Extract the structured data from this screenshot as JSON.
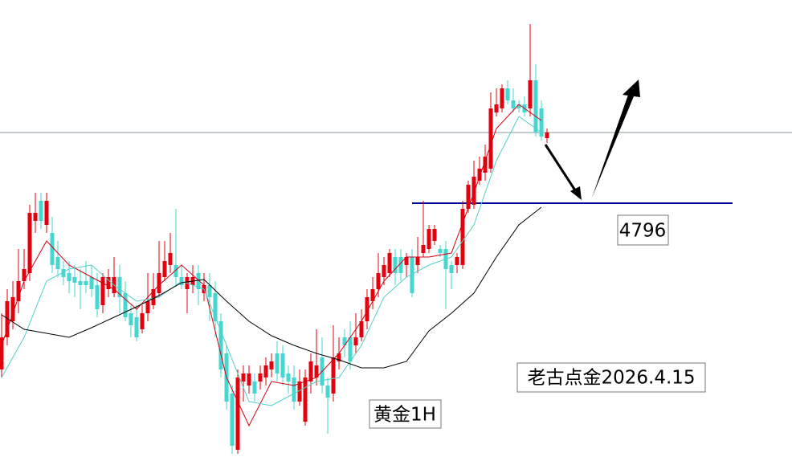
{
  "chart_data": {
    "type": "candlestick",
    "ylim": [
      4480,
      5049
    ],
    "up_color": "#e3000f",
    "down_color": "#45d6cf",
    "candles": [
      [
        4589,
        4659,
        4579,
        4629
      ],
      [
        4629,
        4689,
        4619,
        4674
      ],
      [
        4649,
        4699,
        4639,
        4679
      ],
      [
        4674,
        4739,
        4659,
        4699
      ],
      [
        4699,
        4739,
        4689,
        4714
      ],
      [
        4709,
        4794,
        4699,
        4784
      ],
      [
        4774,
        4809,
        4759,
        4784
      ],
      [
        4799,
        4809,
        4764,
        4774
      ],
      [
        4769,
        4809,
        4759,
        4799
      ],
      [
        4759,
        4779,
        4709,
        4719
      ],
      [
        4729,
        4749,
        4704,
        4714
      ],
      [
        4714,
        4724,
        4694,
        4704
      ],
      [
        4709,
        4724,
        4684,
        4699
      ],
      [
        4704,
        4719,
        4679,
        4697
      ],
      [
        4699,
        4714,
        4664,
        4694
      ],
      [
        4699,
        4724,
        4684,
        4694
      ],
      [
        4704,
        4719,
        4679,
        4689
      ],
      [
        4694,
        4709,
        4654,
        4664
      ],
      [
        4669,
        4709,
        4659,
        4704
      ],
      [
        4689,
        4714,
        4679,
        4704
      ],
      [
        4684,
        4729,
        4679,
        4704
      ],
      [
        4704,
        4719,
        4659,
        4679
      ],
      [
        4684,
        4699,
        4649,
        4654
      ],
      [
        4659,
        4669,
        4629,
        4644
      ],
      [
        4654,
        4669,
        4624,
        4629
      ],
      [
        4639,
        4669,
        4634,
        4659
      ],
      [
        4659,
        4709,
        4649,
        4674
      ],
      [
        4669,
        4709,
        4664,
        4689
      ],
      [
        4684,
        4749,
        4679,
        4709
      ],
      [
        4704,
        4749,
        4699,
        4724
      ],
      [
        4719,
        4759,
        4709,
        4734
      ],
      [
        4719,
        4789,
        4694,
        4704
      ],
      [
        4704,
        4719,
        4689,
        4694
      ],
      [
        4689,
        4709,
        4659,
        4704
      ],
      [
        4694,
        4719,
        4684,
        4704
      ],
      [
        4709,
        4719,
        4669,
        4689
      ],
      [
        4684,
        4709,
        4674,
        4694
      ],
      [
        4694,
        4709,
        4649,
        4679
      ],
      [
        4684,
        4699,
        4629,
        4649
      ],
      [
        4649,
        4659,
        4579,
        4589
      ],
      [
        4609,
        4619,
        4539,
        4549
      ],
      [
        4559,
        4569,
        4484,
        4494
      ],
      [
        4489,
        4589,
        4484,
        4579
      ],
      [
        4574,
        4594,
        4549,
        4584
      ],
      [
        4569,
        4594,
        4559,
        4584
      ],
      [
        4574,
        4584,
        4549,
        4559
      ],
      [
        4574,
        4594,
        4564,
        4584
      ],
      [
        4579,
        4604,
        4569,
        4594
      ],
      [
        4589,
        4609,
        4579,
        4599
      ],
      [
        4609,
        4624,
        4574,
        4584
      ],
      [
        4609,
        4619,
        4569,
        4579
      ],
      [
        4584,
        4594,
        4559,
        4574
      ],
      [
        4579,
        4594,
        4539,
        4549
      ],
      [
        4549,
        4589,
        4544,
        4574
      ],
      [
        4524,
        4589,
        4519,
        4579
      ],
      [
        4574,
        4609,
        4559,
        4599
      ],
      [
        4579,
        4639,
        4569,
        4594
      ],
      [
        4604,
        4629,
        4559,
        4569
      ],
      [
        4569,
        4579,
        4509,
        4554
      ],
      [
        4559,
        4644,
        4549,
        4604
      ],
      [
        4599,
        4629,
        4589,
        4609
      ],
      [
        4629,
        4639,
        4604,
        4619
      ],
      [
        4629,
        4649,
        4589,
        4599
      ],
      [
        4619,
        4659,
        4609,
        4629
      ],
      [
        4629,
        4664,
        4624,
        4649
      ],
      [
        4649,
        4689,
        4639,
        4679
      ],
      [
        4674,
        4704,
        4664,
        4689
      ],
      [
        4689,
        4734,
        4679,
        4709
      ],
      [
        4704,
        4729,
        4694,
        4719
      ],
      [
        4709,
        4739,
        4704,
        4734
      ],
      [
        4729,
        4739,
        4694,
        4709
      ],
      [
        4729,
        4739,
        4699,
        4709
      ],
      [
        4719,
        4734,
        4704,
        4729
      ],
      [
        4729,
        4739,
        4679,
        4684
      ],
      [
        4719,
        4754,
        4709,
        4729
      ],
      [
        4734,
        4799,
        4729,
        4744
      ],
      [
        4739,
        4769,
        4734,
        4764
      ],
      [
        4749,
        4769,
        4744,
        4764
      ],
      [
        4739,
        4744,
        4729,
        4734
      ],
      [
        4739,
        4749,
        4664,
        4714
      ],
      [
        4719,
        4724,
        4689,
        4709
      ],
      [
        4719,
        4734,
        4709,
        4729
      ],
      [
        4719,
        4799,
        4714,
        4789
      ],
      [
        4789,
        4824,
        4784,
        4819
      ],
      [
        4794,
        4849,
        4789,
        4829
      ],
      [
        4824,
        4854,
        4819,
        4839
      ],
      [
        4834,
        4869,
        4824,
        4854
      ],
      [
        4839,
        4934,
        4834,
        4914
      ],
      [
        4909,
        4939,
        4904,
        4919
      ],
      [
        4914,
        4944,
        4909,
        4939
      ],
      [
        4939,
        4949,
        4919,
        4924
      ],
      [
        4924,
        4939,
        4909,
        4914
      ],
      [
        4919,
        4924,
        4909,
        4914
      ],
      [
        4919,
        4929,
        4904,
        4909
      ],
      [
        4914,
        5019,
        4904,
        4949
      ],
      [
        4949,
        4969,
        4879,
        4884
      ],
      [
        4914,
        4924,
        4874,
        4879
      ],
      [
        4877,
        4889,
        4871,
        4884
      ]
    ],
    "series": [
      {
        "color": "#d40010",
        "x": [
          0,
          4,
          8,
          12,
          16,
          20,
          24,
          28,
          32,
          36,
          40,
          44,
          48,
          52,
          56,
          60,
          64,
          68,
          72,
          76,
          80,
          84,
          88,
          92,
          96
        ],
        "values": [
          4619,
          4699,
          4749,
          4719,
          4704,
          4689,
          4664,
          4694,
          4719,
          4694,
          4579,
          4519,
          4574,
          4569,
          4579,
          4609,
          4649,
          4699,
          4729,
          4729,
          4734,
          4809,
          4889,
          4919,
          4899
        ]
      },
      {
        "color": "#52cfc8",
        "x": [
          0,
          4,
          8,
          12,
          16,
          20,
          24,
          28,
          32,
          36,
          40,
          44,
          48,
          52,
          56,
          60,
          64,
          68,
          72,
          76,
          80,
          84,
          88,
          92,
          96
        ],
        "values": [
          4579,
          4629,
          4699,
          4714,
          4719,
          4694,
          4674,
          4679,
          4699,
          4689,
          4619,
          4549,
          4544,
          4559,
          4574,
          4579,
          4619,
          4679,
          4704,
          4719,
          4729,
          4769,
          4849,
          4904,
          4884
        ]
      },
      {
        "color": "#000000",
        "x": [
          0,
          4,
          8,
          12,
          16,
          20,
          24,
          28,
          32,
          36,
          40,
          44,
          48,
          52,
          56,
          60,
          64,
          68,
          72,
          76,
          80,
          84,
          88,
          92,
          96
        ],
        "values": [
          4657,
          4639,
          4634,
          4629,
          4641,
          4654,
          4667,
          4681,
          4697,
          4701,
          4674,
          4649,
          4631,
          4619,
          4609,
          4601,
          4591,
          4591,
          4599,
          4637,
          4659,
          4684,
          4729,
          4769,
          4791
        ]
      }
    ],
    "price_line": 4884,
    "level": 4796,
    "level_color": "#00009c",
    "annotations": [
      "黄金1H",
      "老古点金2026.4.15"
    ]
  }
}
